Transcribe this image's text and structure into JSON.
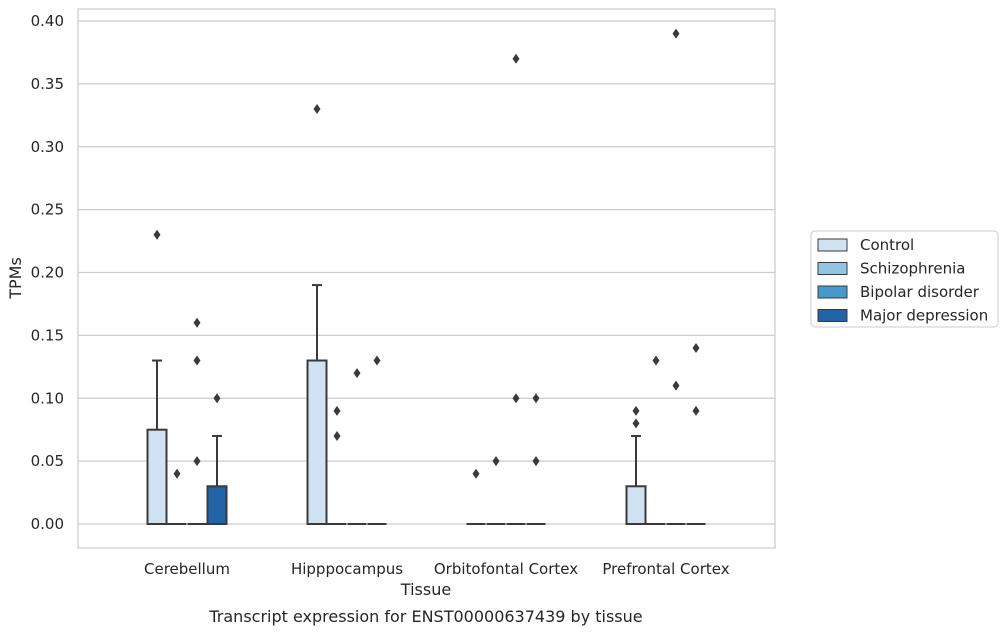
{
  "chart_data": {
    "type": "box",
    "xlabel": "Tissue",
    "ylabel": "TPMs",
    "caption": "Transcript expression for ENST00000637439 by tissue",
    "ylim": [
      -0.019,
      0.41
    ],
    "yticks": [
      "0.00",
      "0.05",
      "0.10",
      "0.15",
      "0.20",
      "0.25",
      "0.30",
      "0.35",
      "0.40"
    ],
    "ytick_values": [
      0,
      0.05,
      0.1,
      0.15,
      0.2,
      0.25,
      0.3,
      0.35,
      0.4
    ],
    "grid": true,
    "legend_position": "right",
    "categories": [
      "Cerebellum",
      "Hipppocampus",
      "Orbitofontal Cortex",
      "Prefrontal Cortex"
    ],
    "series": [
      {
        "name": "Control",
        "color": "#d0e1f2",
        "boxes": [
          {
            "q1": 0,
            "median": 0,
            "q3": 0.075,
            "whisker_low": 0,
            "whisker_high": 0.13,
            "fliers": [
              0.23
            ]
          },
          {
            "q1": 0,
            "median": 0,
            "q3": 0.13,
            "whisker_low": 0,
            "whisker_high": 0.19,
            "fliers": [
              0.33
            ]
          },
          {
            "q1": 0,
            "median": 0,
            "q3": 0,
            "whisker_low": 0,
            "whisker_high": 0,
            "fliers": [
              0.04
            ]
          },
          {
            "q1": 0,
            "median": 0,
            "q3": 0.03,
            "whisker_low": 0,
            "whisker_high": 0.07,
            "fliers": [
              0.08,
              0.09
            ]
          }
        ]
      },
      {
        "name": "Schizophrenia",
        "color": "#94c4df",
        "boxes": [
          {
            "q1": 0,
            "median": 0,
            "q3": 0,
            "whisker_low": 0,
            "whisker_high": 0,
            "fliers": [
              0.04
            ]
          },
          {
            "q1": 0,
            "median": 0,
            "q3": 0,
            "whisker_low": 0,
            "whisker_high": 0,
            "fliers": [
              0.07,
              0.09
            ]
          },
          {
            "q1": 0,
            "median": 0,
            "q3": 0,
            "whisker_low": 0,
            "whisker_high": 0,
            "fliers": [
              0.05
            ]
          },
          {
            "q1": 0,
            "median": 0,
            "q3": 0,
            "whisker_low": 0,
            "whisker_high": 0,
            "fliers": [
              0.13
            ]
          }
        ]
      },
      {
        "name": "Bipolar disorder",
        "color": "#4a98c9",
        "boxes": [
          {
            "q1": 0,
            "median": 0,
            "q3": 0,
            "whisker_low": 0,
            "whisker_high": 0,
            "fliers": [
              0.05,
              0.13,
              0.16
            ]
          },
          {
            "q1": 0,
            "median": 0,
            "q3": 0,
            "whisker_low": 0,
            "whisker_high": 0,
            "fliers": [
              0.12
            ]
          },
          {
            "q1": 0,
            "median": 0,
            "q3": 0,
            "whisker_low": 0,
            "whisker_high": 0,
            "fliers": [
              0.1,
              0.37
            ]
          },
          {
            "q1": 0,
            "median": 0,
            "q3": 0,
            "whisker_low": 0,
            "whisker_high": 0,
            "fliers": [
              0.11,
              0.39
            ]
          }
        ]
      },
      {
        "name": "Major depression",
        "color": "#2264a5",
        "boxes": [
          {
            "q1": 0,
            "median": 0,
            "q3": 0.03,
            "whisker_low": 0,
            "whisker_high": 0.07,
            "fliers": [
              0.1
            ]
          },
          {
            "q1": 0,
            "median": 0,
            "q3": 0,
            "whisker_low": 0,
            "whisker_high": 0,
            "fliers": [
              0.13
            ]
          },
          {
            "q1": 0,
            "median": 0,
            "q3": 0,
            "whisker_low": 0,
            "whisker_high": 0,
            "fliers": [
              0.05,
              0.1
            ]
          },
          {
            "q1": 0,
            "median": 0,
            "q3": 0,
            "whisker_low": 0,
            "whisker_high": 0,
            "fliers": [
              0.09,
              0.14
            ]
          }
        ]
      }
    ]
  }
}
